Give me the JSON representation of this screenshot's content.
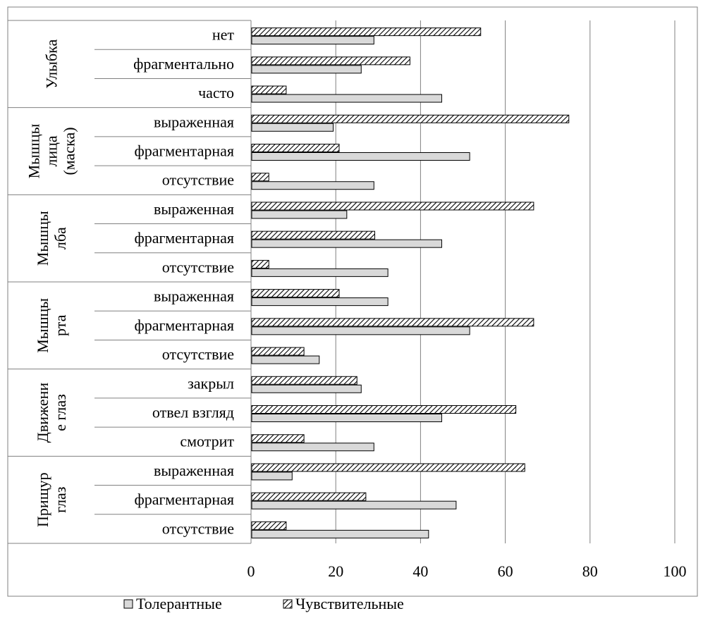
{
  "chart_data": {
    "type": "bar",
    "orientation": "horizontal",
    "groups": [
      {
        "label": "Улыбка",
        "lines": [
          "Улыбка"
        ],
        "categories": [
          "нет",
          "фрагментально",
          "часто"
        ]
      },
      {
        "label": "Мышцы лица (маска)",
        "lines": [
          "Мышцы",
          "лица",
          "(маска)"
        ],
        "categories": [
          "выраженная",
          "фрагментарная",
          "отсутствие"
        ]
      },
      {
        "label": "Мышцы лба",
        "lines": [
          "Мышцы",
          "лба"
        ],
        "categories": [
          "выраженная",
          "фрагментарная",
          "отсутствие"
        ]
      },
      {
        "label": "Мышцы рта",
        "lines": [
          "Мышцы",
          "рта"
        ],
        "categories": [
          "выраженная",
          "фрагментарная",
          "отсутствие"
        ]
      },
      {
        "label": "Движение глаз",
        "lines": [
          "Движени",
          "е глаз"
        ],
        "categories": [
          "закрыл",
          "отвел взгляд",
          "смотрит"
        ]
      },
      {
        "label": "Прищур глаз",
        "lines": [
          "Прищур",
          "глаз"
        ],
        "categories": [
          "выраженная",
          "фрагментарная",
          "отсутствие"
        ]
      }
    ],
    "series": [
      {
        "name": "Толерантные",
        "pattern": "solid-light-gray",
        "color": "#d9d9d9",
        "values": [
          29,
          26,
          45,
          19.4,
          51.6,
          29,
          22.6,
          45,
          32.3,
          32.3,
          51.6,
          16.1,
          26,
          45,
          29,
          9.7,
          48.4,
          41.9
        ]
      },
      {
        "name": "Чувствительные",
        "pattern": "diagonal-hatch",
        "color": "#000000",
        "values": [
          54.2,
          37.5,
          8.3,
          75,
          20.8,
          4.2,
          66.7,
          29.2,
          4.2,
          20.8,
          66.7,
          12.5,
          25,
          62.5,
          12.5,
          64.6,
          27.1,
          8.3
        ]
      }
    ],
    "xlim": [
      0,
      100
    ],
    "xticks": [
      "0",
      "20",
      "40",
      "60",
      "80",
      "100"
    ],
    "grid": true,
    "legend_position": "bottom"
  }
}
